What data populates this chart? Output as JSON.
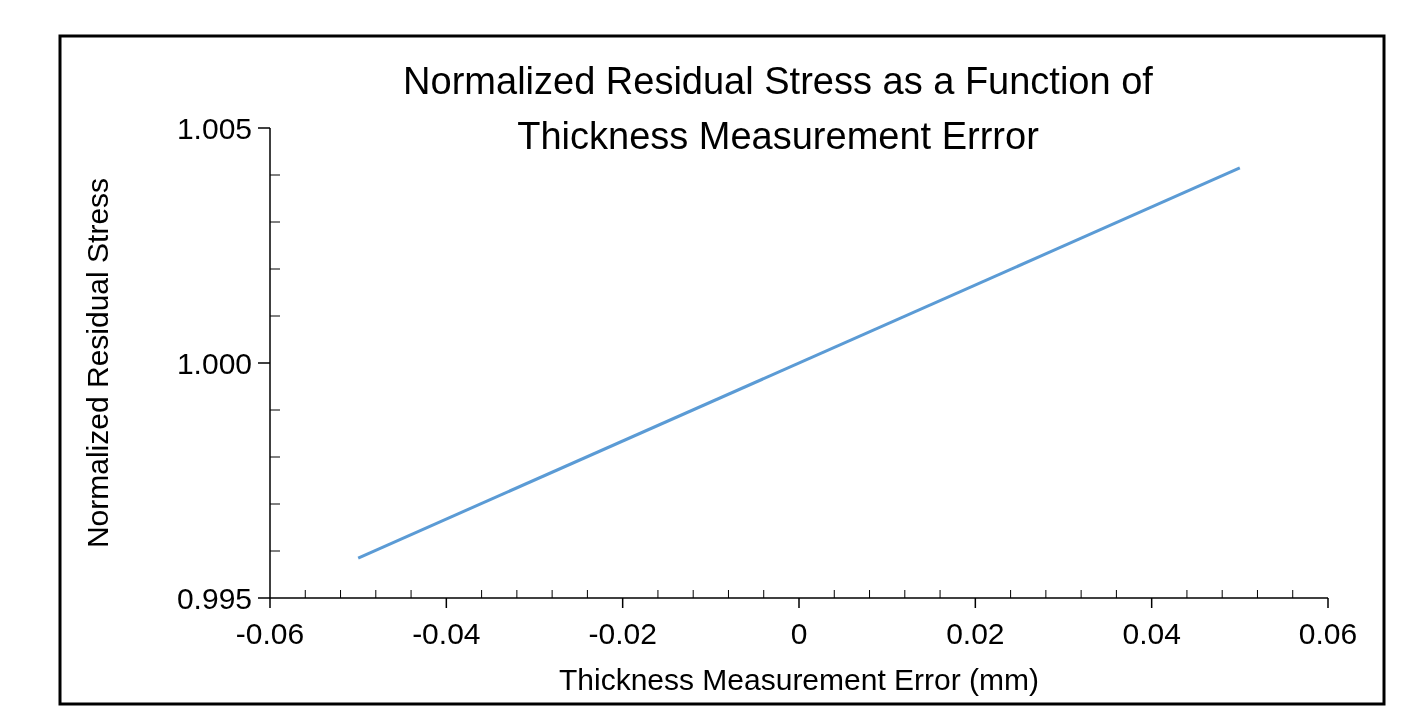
{
  "chart_data": {
    "type": "line",
    "title": "Normalized Residual Stress as a Function of Thickness Measurement Errror",
    "xlabel": "Thickness Measurement Error (mm)",
    "ylabel": "Normalized Residual Stress",
    "x": [
      -0.05,
      0.05
    ],
    "series": [
      {
        "color": "#5b9bd5",
        "values": [
          0.99585,
          1.00415
        ]
      }
    ],
    "xlim": [
      -0.06,
      0.06
    ],
    "ylim": [
      0.995,
      1.005
    ],
    "xticks": [
      {
        "value": -0.06,
        "label": "-0.06"
      },
      {
        "value": -0.056,
        "label": null
      },
      {
        "value": -0.052,
        "label": null
      },
      {
        "value": -0.048,
        "label": null
      },
      {
        "value": -0.044,
        "label": null
      },
      {
        "value": -0.04,
        "label": "-0.04"
      },
      {
        "value": -0.036,
        "label": null
      },
      {
        "value": -0.032,
        "label": null
      },
      {
        "value": -0.028,
        "label": null
      },
      {
        "value": -0.024,
        "label": null
      },
      {
        "value": -0.02,
        "label": "-0.02"
      },
      {
        "value": -0.016,
        "label": null
      },
      {
        "value": -0.012,
        "label": null
      },
      {
        "value": -0.008,
        "label": null
      },
      {
        "value": -0.004,
        "label": null
      },
      {
        "value": 0,
        "label": "0"
      },
      {
        "value": 0.004,
        "label": null
      },
      {
        "value": 0.008,
        "label": null
      },
      {
        "value": 0.012,
        "label": null
      },
      {
        "value": 0.016,
        "label": null
      },
      {
        "value": 0.02,
        "label": "0.02"
      },
      {
        "value": 0.024,
        "label": null
      },
      {
        "value": 0.028,
        "label": null
      },
      {
        "value": 0.032,
        "label": null
      },
      {
        "value": 0.036,
        "label": null
      },
      {
        "value": 0.04,
        "label": "0.04"
      },
      {
        "value": 0.044,
        "label": null
      },
      {
        "value": 0.048,
        "label": null
      },
      {
        "value": 0.052,
        "label": null
      },
      {
        "value": 0.056,
        "label": null
      },
      {
        "value": 0.06,
        "label": "0.06"
      }
    ],
    "yticks": [
      {
        "value": 0.995,
        "label": "0.995"
      },
      {
        "value": 0.996,
        "label": null
      },
      {
        "value": 0.997,
        "label": null
      },
      {
        "value": 0.998,
        "label": null
      },
      {
        "value": 0.999,
        "label": null
      },
      {
        "value": 1,
        "label": "1.000"
      },
      {
        "value": 1.001,
        "label": null
      },
      {
        "value": 1.002,
        "label": null
      },
      {
        "value": 1.003,
        "label": null
      },
      {
        "value": 1.004,
        "label": null
      },
      {
        "value": 1.005,
        "label": "1.005"
      }
    ],
    "grid": false,
    "marker": "none",
    "line_style": "solid"
  }
}
